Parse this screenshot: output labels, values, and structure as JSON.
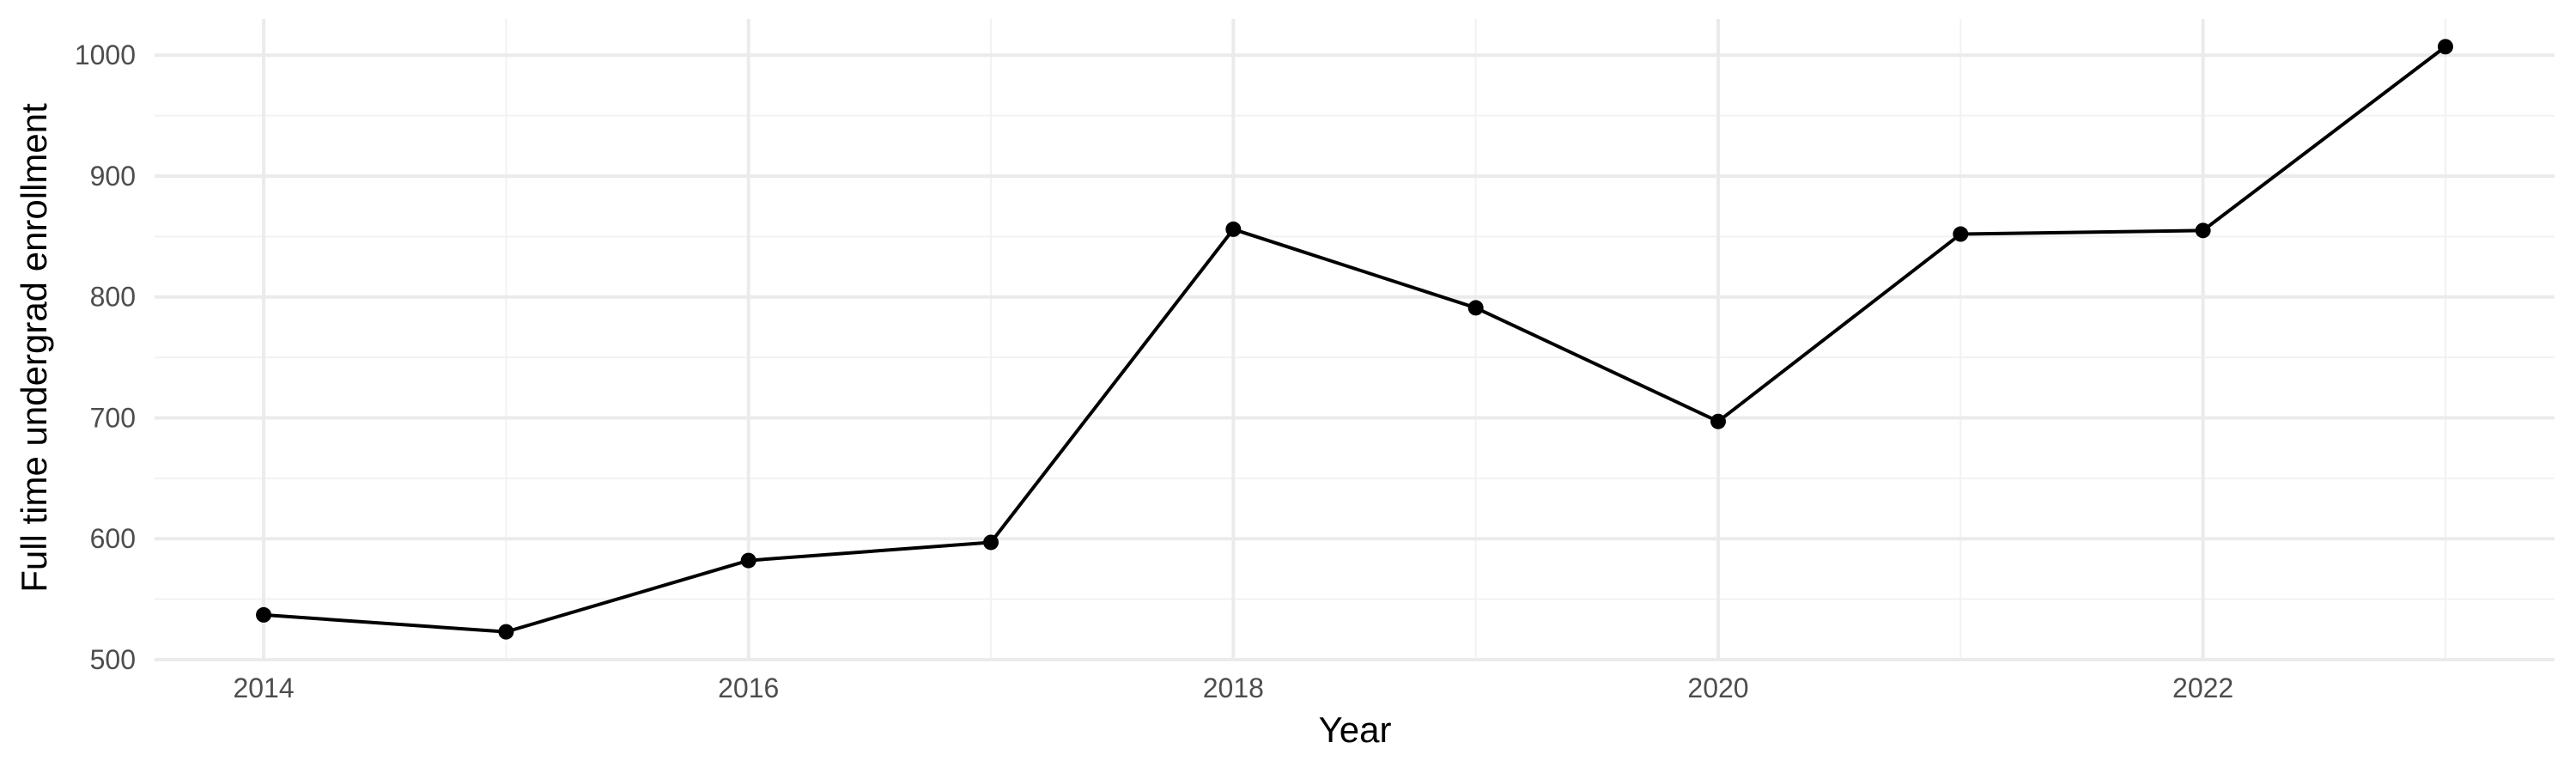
{
  "chart_data": {
    "type": "line",
    "title": "",
    "xlabel": "Year",
    "ylabel": "Full time undergrad enrollment",
    "x": [
      2014,
      2015,
      2016,
      2017,
      2018,
      2019,
      2020,
      2021,
      2022,
      2023
    ],
    "series": [
      {
        "values": [
          537,
          523,
          582,
          597,
          856,
          791,
          697,
          852,
          855,
          1007
        ]
      }
    ],
    "xlim": [
      2013.55,
      2023.45
    ],
    "ylim": [
      500,
      1030
    ],
    "x_ticks": [
      2014,
      2016,
      2018,
      2020,
      2022
    ],
    "x_tick_labels": [
      "2014",
      "2016",
      "2018",
      "2020",
      "2022"
    ],
    "x_minor_ticks": [
      2015,
      2017,
      2019,
      2021,
      2023
    ],
    "y_ticks": [
      500,
      600,
      700,
      800,
      900,
      1000
    ],
    "y_tick_labels": [
      "500",
      "600",
      "700",
      "800",
      "900",
      "1000"
    ],
    "y_minor_ticks": [
      550,
      650,
      750,
      850,
      950
    ],
    "grid": true,
    "legend": "none",
    "colors": {
      "line": "#000000",
      "points": "#000000",
      "grid_major": "#ebebeb",
      "grid_minor": "#f2f2f2",
      "tick_text": "#4d4d4d",
      "background": "#ffffff"
    }
  }
}
